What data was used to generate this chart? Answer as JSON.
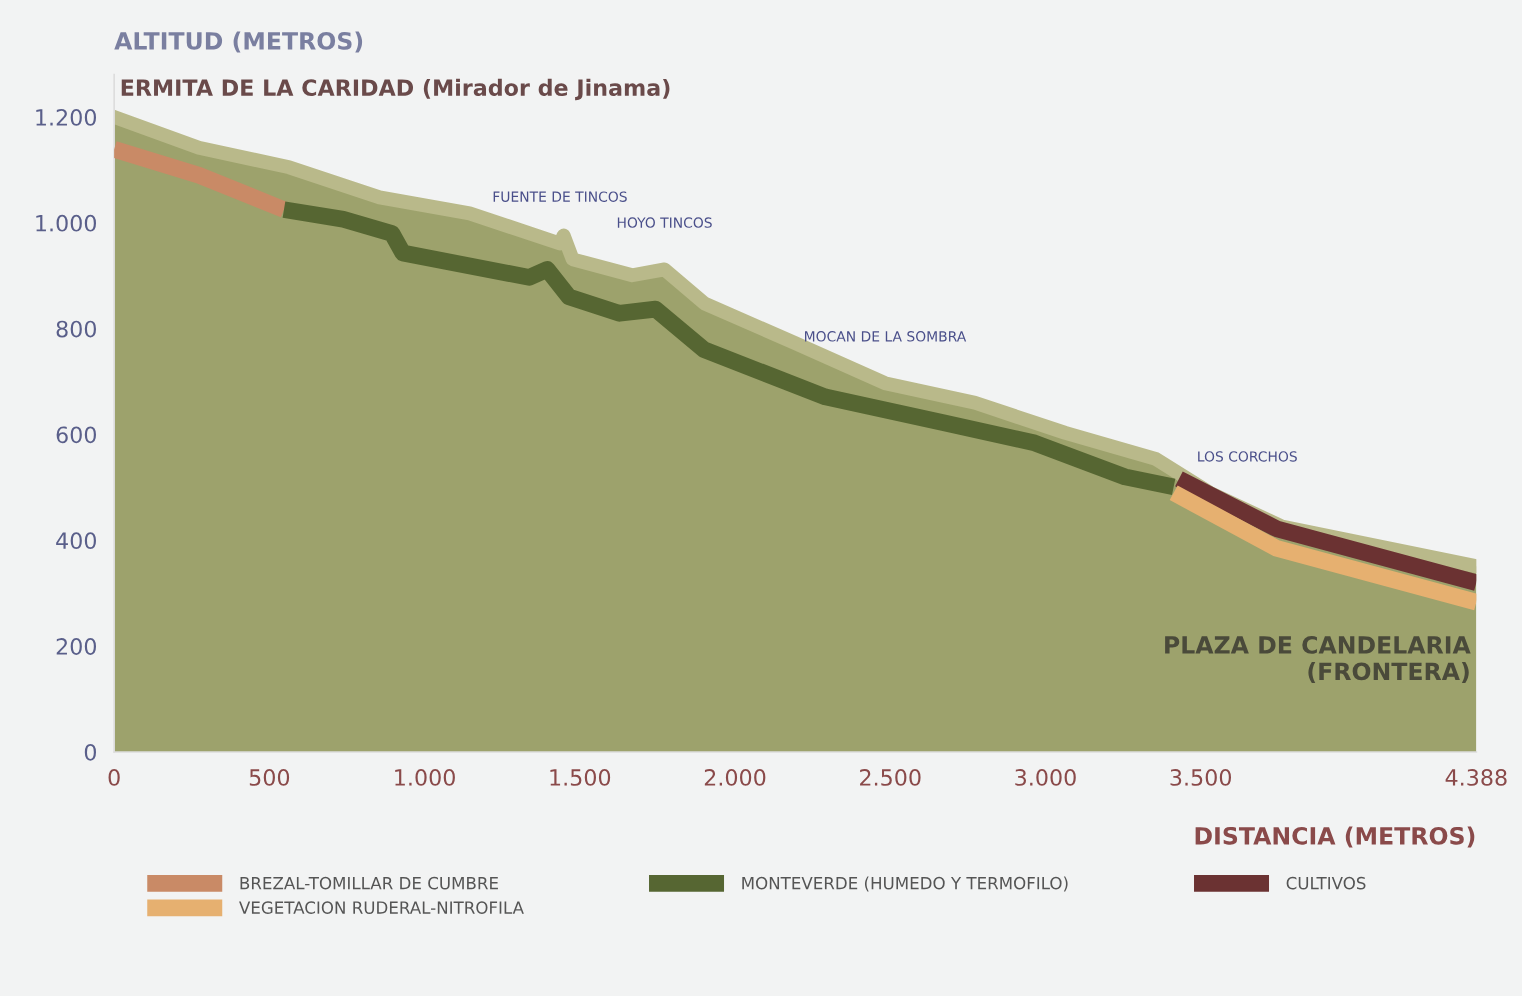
{
  "chart_data": {
    "type": "line",
    "ylabel": "ALTITUD (METROS)",
    "xlabel": "DISTANCIA (METROS)",
    "xlim": [
      0,
      4388
    ],
    "ylim": [
      0,
      1280
    ],
    "xticks": [
      0,
      500,
      {
        "value": 1000,
        "label": "1.000"
      },
      {
        "value": 1500,
        "label": "1.500"
      },
      {
        "value": 2000,
        "label": "2.000"
      },
      {
        "value": 2500,
        "label": "2.500"
      },
      {
        "value": 3000,
        "label": "3.000"
      },
      {
        "value": 3500,
        "label": "3.500"
      },
      {
        "value": 4388,
        "label": "4.388"
      }
    ],
    "yticks": [
      0,
      200,
      400,
      600,
      800,
      {
        "value": 1000,
        "label": "1.000"
      },
      {
        "value": 1200,
        "label": "1.200"
      }
    ],
    "grid": false,
    "legend": "bottom",
    "marker": "none",
    "line_style": "solid",
    "series": [
      {
        "type": "area",
        "color": "#9da26c",
        "x": [
          0,
          273,
          564,
          855,
          1145,
          1436,
          1448,
          1477,
          1669,
          1773,
          1901,
          2192,
          2483,
          2773,
          3064,
          3355,
          3529,
          3762,
          4388
        ],
        "values": [
          1200,
          1142,
          1105,
          1048,
          1018,
          961,
          976,
          931,
          901,
          912,
          848,
          773,
          697,
          660,
          603,
          554,
          490,
          426,
          351
        ]
      },
      {
        "name": "BREZAL-TOMILLAR DE CUMBRE",
        "color": "#c98a66",
        "x": [
          0,
          273,
          547
        ],
        "values": [
          1139,
          1090,
          1025
        ]
      },
      {
        "name": "MONTEVERDE (HUMEDO Y TERMOFILO)",
        "color": "#566632",
        "x": [
          547,
          738,
          895,
          930,
          1337,
          1395,
          1465,
          1628,
          1744,
          1901,
          2291,
          2674,
          2965,
          3256,
          3413
        ],
        "values": [
          1025,
          1007,
          980,
          943,
          897,
          912,
          860,
          829,
          837,
          760,
          671,
          622,
          584,
          520,
          501
        ]
      },
      {
        "name": "CULTIVOS",
        "color": "#6b3232",
        "x": [
          3430,
          3744,
          4388
        ],
        "values": [
          516,
          422,
          320
        ]
      },
      {
        "name": "VEGETACION RUDERAL-NITROFILA",
        "color": "#e6b070",
        "x": [
          3413,
          3744,
          4388
        ],
        "values": [
          490,
          385,
          283
        ]
      }
    ],
    "annotations": [
      {
        "text": "ERMITA DE LA CARIDAD (Mirador de Jinama)",
        "x": 0,
        "y": 1200
      },
      {
        "text": "FUENTE DE TINCOS",
        "x": 1436,
        "y": 961
      },
      {
        "text": "HOYO TINCOS",
        "x": 1773,
        "y": 912
      },
      {
        "text": "MOCAN DE LA SOMBRA",
        "x": 2483,
        "y": 697
      },
      {
        "text": "LOS CORCHOS",
        "x": 3650,
        "y": 470
      },
      {
        "text": "PLAZA DE CANDELARIA\n(FRONTERA)",
        "x": 4388,
        "y": 283
      }
    ]
  }
}
